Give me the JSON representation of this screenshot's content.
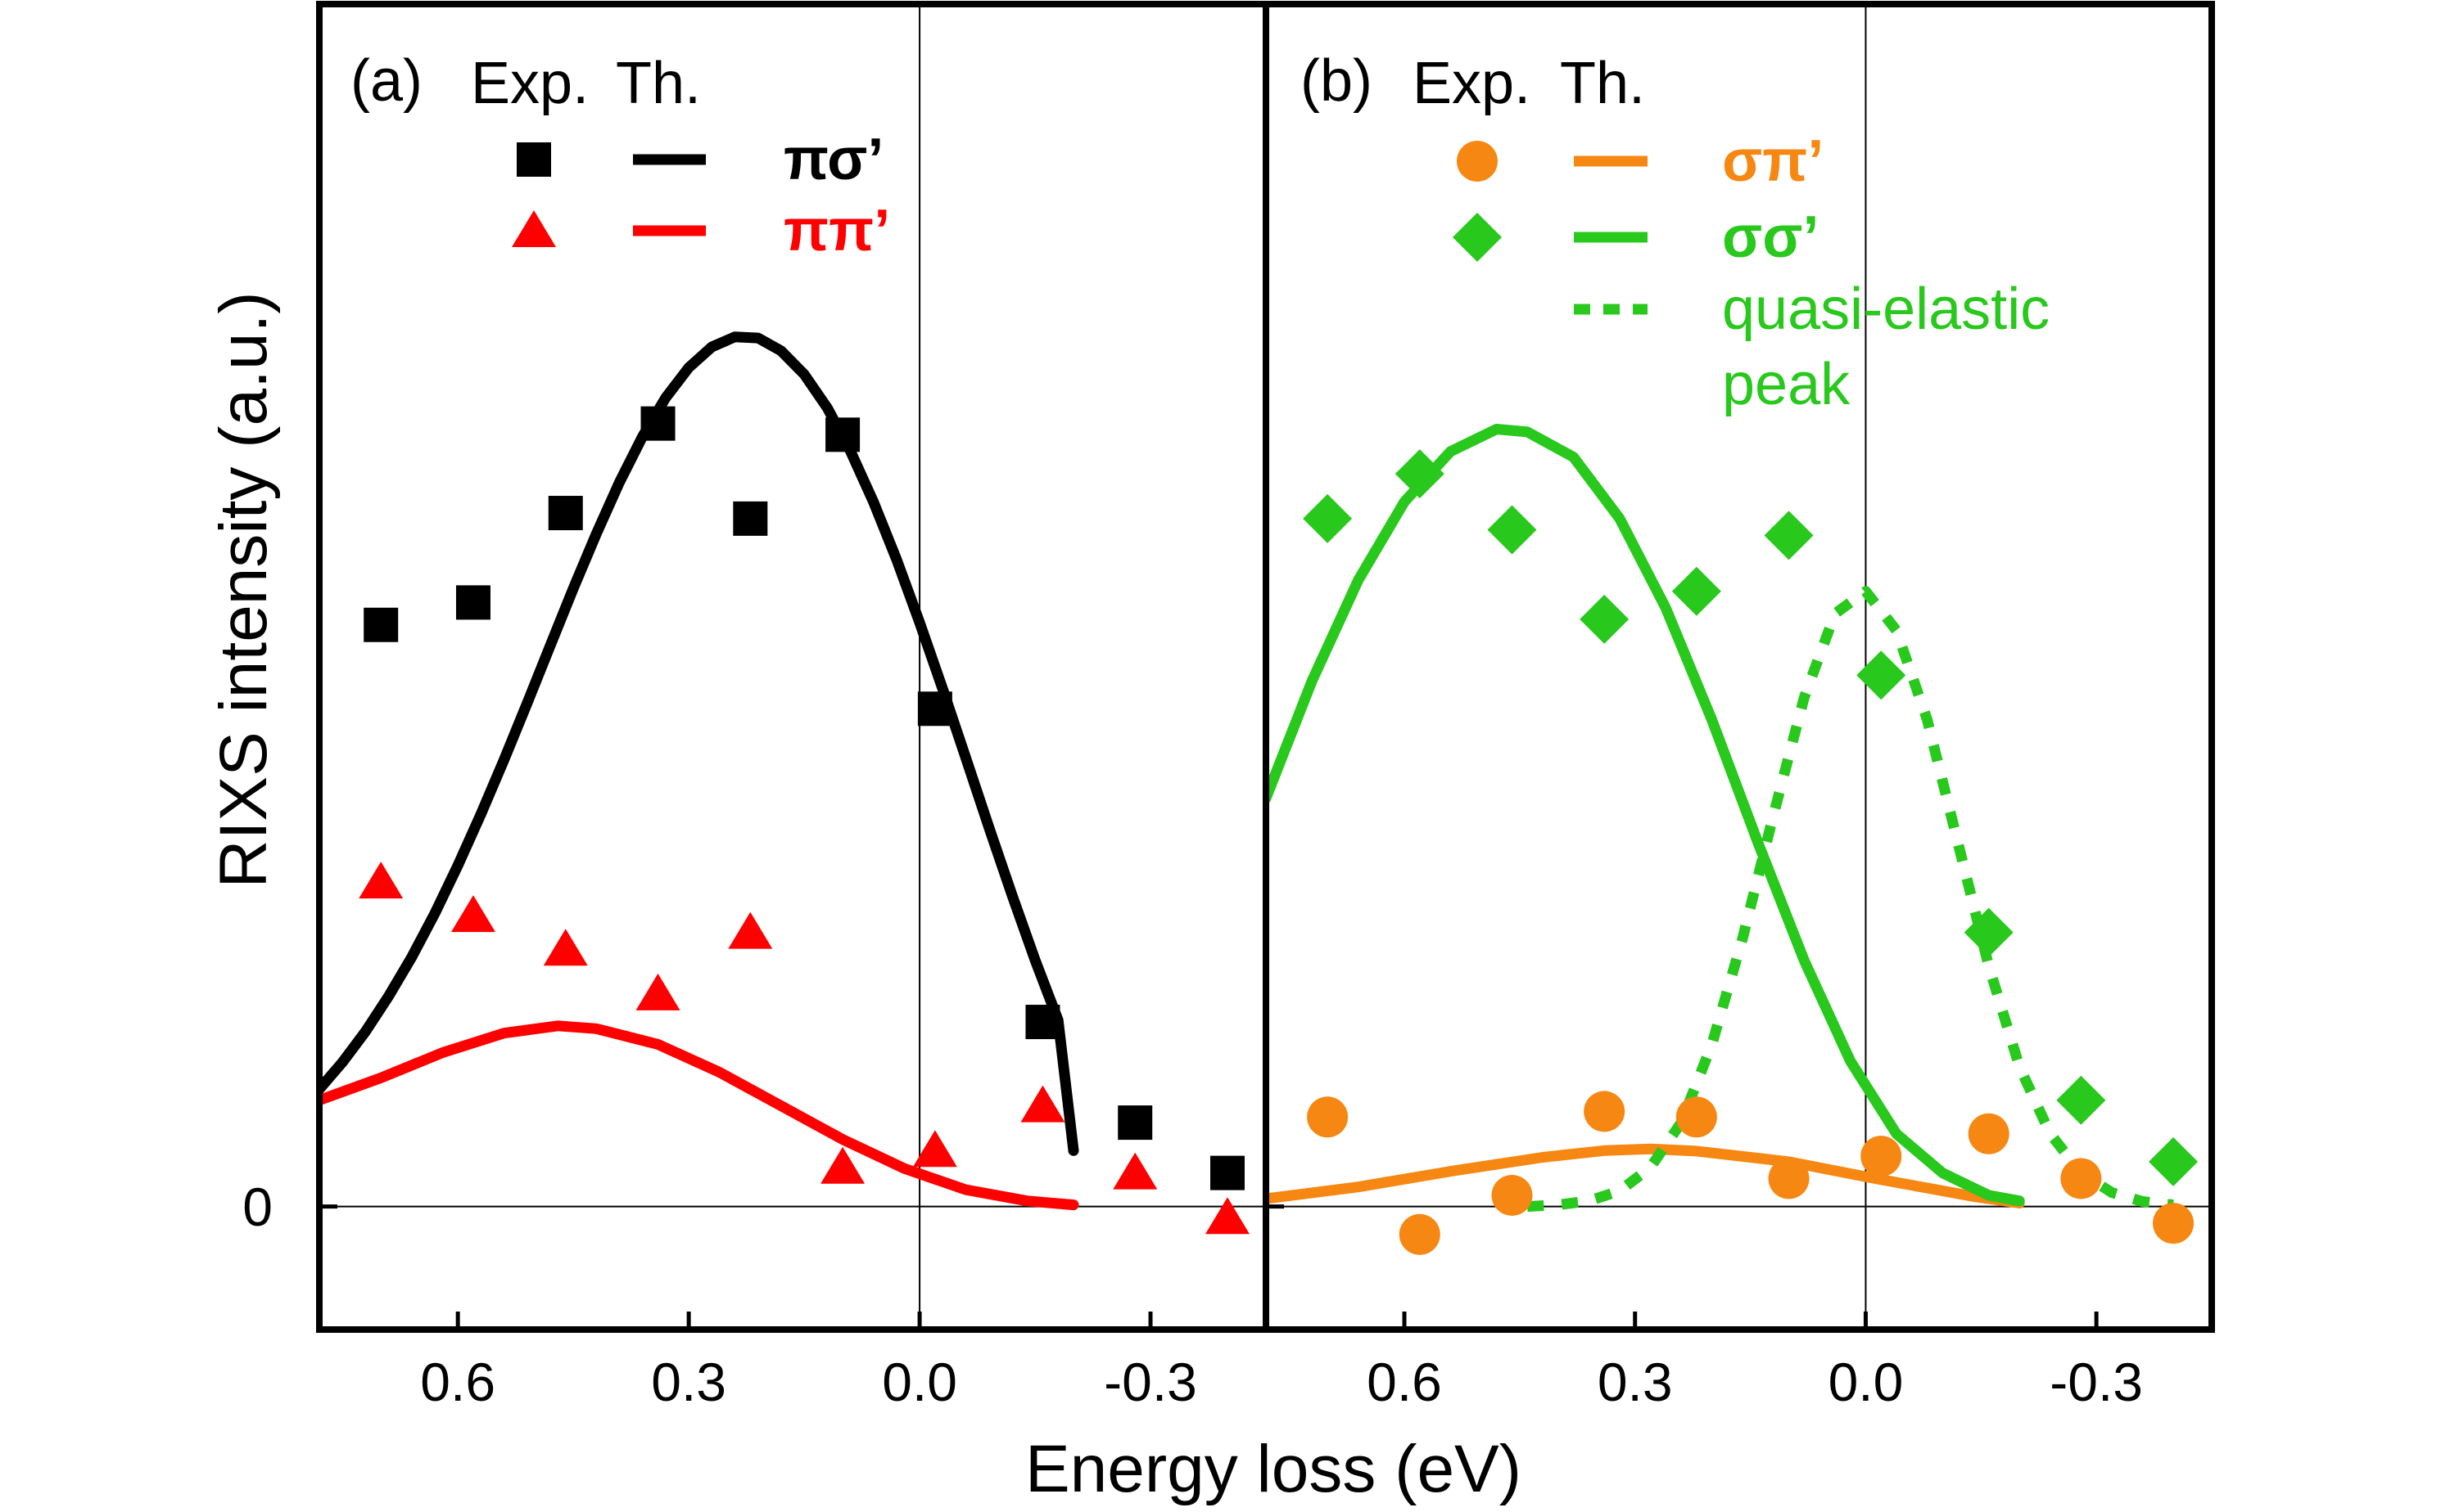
{
  "figure": {
    "ylabel": "RIXS intensity (a.u.)",
    "xlabel": "Energy loss (eV)",
    "y_zero_label": "0",
    "legend_header": {
      "exp": "Exp.",
      "th": "Th."
    }
  },
  "colors": {
    "black": "#000000",
    "red": "#ff0000",
    "orange": "#f68712",
    "green": "#28c81c"
  },
  "chart_data": [
    {
      "type": "scatter",
      "panel_label": "(a)",
      "x_reversed": true,
      "xlim": [
        0.78,
        -0.45
      ],
      "ylim": [
        -0.22,
        2.15
      ],
      "xticks": [
        0.6,
        0.3,
        0.0,
        -0.3
      ],
      "xtick_labels": [
        "0.6",
        "0.3",
        "0.0",
        "-0.3"
      ],
      "series": [
        {
          "name": "πσ'",
          "label": "πσ’",
          "kind": "exp",
          "marker": "square",
          "color_key": "black",
          "x": [
            0.7,
            0.58,
            0.46,
            0.34,
            0.22,
            0.1,
            -0.02,
            -0.16,
            -0.28,
            -0.4
          ],
          "y": [
            1.04,
            1.08,
            1.24,
            1.4,
            1.23,
            1.38,
            0.89,
            0.33,
            0.15,
            0.06
          ]
        },
        {
          "name": "πσ'",
          "label": "πσ’",
          "kind": "theory",
          "style": "solid",
          "color_key": "black",
          "x": [
            0.78,
            0.75,
            0.72,
            0.69,
            0.66,
            0.63,
            0.6,
            0.57,
            0.54,
            0.51,
            0.48,
            0.45,
            0.42,
            0.39,
            0.36,
            0.33,
            0.3,
            0.27,
            0.24,
            0.21,
            0.18,
            0.15,
            0.12,
            0.09,
            0.06,
            0.03,
            0.0,
            -0.03,
            -0.06,
            -0.09,
            -0.12,
            -0.15,
            -0.18,
            -0.2
          ],
          "y": [
            0.21,
            0.258,
            0.313,
            0.376,
            0.446,
            0.524,
            0.61,
            0.702,
            0.799,
            0.9,
            1.003,
            1.105,
            1.203,
            1.295,
            1.377,
            1.446,
            1.5,
            1.537,
            1.555,
            1.553,
            1.53,
            1.488,
            1.428,
            1.351,
            1.26,
            1.157,
            1.044,
            0.925,
            0.802,
            0.678,
            0.557,
            0.441,
            0.333,
            0.1
          ]
        },
        {
          "name": "ππ'",
          "label": "ππ’",
          "kind": "exp",
          "marker": "triangle",
          "color_key": "red",
          "x": [
            0.7,
            0.58,
            0.46,
            0.34,
            0.22,
            0.1,
            -0.02,
            -0.16,
            -0.28,
            -0.4
          ],
          "y": [
            0.58,
            0.52,
            0.46,
            0.38,
            0.49,
            0.07,
            0.1,
            0.18,
            0.06,
            -0.02
          ]
        },
        {
          "name": "ππ'",
          "label": "ππ’",
          "kind": "theory",
          "style": "solid",
          "color_key": "red",
          "x": [
            0.78,
            0.7,
            0.62,
            0.54,
            0.47,
            0.42,
            0.34,
            0.26,
            0.18,
            0.1,
            0.02,
            -0.06,
            -0.14,
            -0.2
          ],
          "y": [
            0.19,
            0.23,
            0.275,
            0.31,
            0.323,
            0.318,
            0.29,
            0.24,
            0.18,
            0.12,
            0.068,
            0.03,
            0.01,
            0.003
          ]
        }
      ]
    },
    {
      "type": "scatter",
      "panel_label": "(b)",
      "x_reversed": true,
      "xlim": [
        0.78,
        -0.45
      ],
      "ylim": [
        -0.22,
        2.15
      ],
      "xticks": [
        0.6,
        0.3,
        0.0,
        -0.3
      ],
      "xtick_labels": [
        "0.6",
        "0.3",
        "0.0",
        "-0.3"
      ],
      "series": [
        {
          "name": "σπ'",
          "label": "σπ’",
          "kind": "exp",
          "marker": "circle",
          "color_key": "orange",
          "x": [
            0.7,
            0.58,
            0.46,
            0.34,
            0.22,
            0.1,
            -0.02,
            -0.16,
            -0.28,
            -0.4
          ],
          "y": [
            0.16,
            -0.05,
            0.02,
            0.17,
            0.16,
            0.05,
            0.09,
            0.13,
            0.05,
            -0.03
          ]
        },
        {
          "name": "σπ'",
          "label": "σπ’",
          "kind": "theory",
          "style": "solid",
          "color_key": "orange",
          "x": [
            0.78,
            0.66,
            0.54,
            0.42,
            0.34,
            0.28,
            0.22,
            0.1,
            -0.02,
            -0.14,
            -0.2
          ],
          "y": [
            0.014,
            0.035,
            0.063,
            0.088,
            0.1,
            0.103,
            0.099,
            0.08,
            0.048,
            0.018,
            0.006
          ]
        },
        {
          "name": "σσ'",
          "label": "σσ’",
          "kind": "exp",
          "marker": "diamond",
          "color_key": "green",
          "x": [
            0.7,
            0.58,
            0.46,
            0.34,
            0.22,
            0.1,
            -0.02,
            -0.16,
            -0.28,
            -0.4
          ],
          "y": [
            1.23,
            1.31,
            1.21,
            1.05,
            1.1,
            1.2,
            0.95,
            0.49,
            0.19,
            0.08
          ]
        },
        {
          "name": "σσ'",
          "label": "σσ’",
          "kind": "theory",
          "style": "solid",
          "color_key": "green",
          "x": [
            0.78,
            0.72,
            0.66,
            0.6,
            0.54,
            0.48,
            0.44,
            0.38,
            0.32,
            0.26,
            0.2,
            0.14,
            0.08,
            0.02,
            -0.04,
            -0.1,
            -0.16,
            -0.2
          ],
          "y": [
            0.73,
            0.94,
            1.12,
            1.26,
            1.35,
            1.39,
            1.385,
            1.34,
            1.23,
            1.07,
            0.87,
            0.65,
            0.44,
            0.26,
            0.13,
            0.06,
            0.02,
            0.01
          ]
        },
        {
          "name": "quasi-elastic peak",
          "label": "quasi-elastic",
          "label2": "peak",
          "kind": "theory",
          "style": "dotted",
          "color_key": "green",
          "x": [
            0.44,
            0.4,
            0.36,
            0.32,
            0.28,
            0.24,
            0.2,
            0.16,
            0.12,
            0.08,
            0.04,
            0.0,
            -0.04,
            -0.08,
            -0.12,
            -0.16,
            -0.2,
            -0.24,
            -0.28,
            -0.32,
            -0.36,
            -0.4
          ],
          "y": [
            0.0,
            0.003,
            0.01,
            0.028,
            0.07,
            0.15,
            0.29,
            0.48,
            0.7,
            0.91,
            1.06,
            1.1,
            1.03,
            0.87,
            0.65,
            0.43,
            0.25,
            0.13,
            0.06,
            0.025,
            0.009,
            0.003
          ]
        }
      ]
    }
  ]
}
